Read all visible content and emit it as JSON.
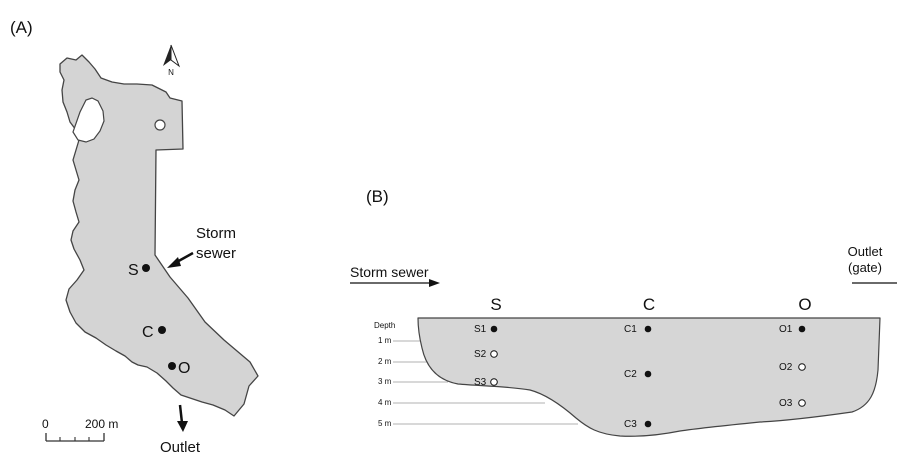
{
  "panel_a": {
    "label": "(A)",
    "north": "N",
    "sites": {
      "s": "S",
      "c": "C",
      "o": "O"
    },
    "storm_sewer": [
      "Storm",
      "sewer"
    ],
    "outlet": "Outlet",
    "scale": {
      "zero": "0",
      "dist": "200 m"
    }
  },
  "panel_b": {
    "label": "(B)",
    "storm_sewer": "Storm sewer",
    "outlet": [
      "Outlet",
      "(gate)"
    ],
    "columns": {
      "s": "S",
      "c": "C",
      "o": "O"
    },
    "depth_title": "Depth",
    "depths": [
      "1 m",
      "2 m",
      "3 m",
      "4 m",
      "5 m"
    ],
    "points": {
      "s1": "S1",
      "s2": "S2",
      "s3": "S3",
      "c1": "C1",
      "c2": "C2",
      "c3": "C3",
      "o1": "O1",
      "o2": "O2",
      "o3": "O3"
    }
  }
}
